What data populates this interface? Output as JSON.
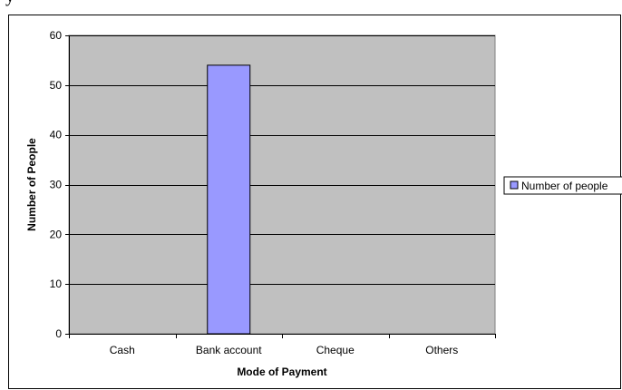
{
  "page": {
    "top_fragment": "y"
  },
  "chart_data": {
    "type": "bar",
    "title": "",
    "categories": [
      "Cash",
      "Bank account",
      "Cheque",
      "Others"
    ],
    "series": [
      {
        "name": "Number of people",
        "values": [
          0,
          54,
          0,
          0
        ],
        "color": "#9999ff"
      }
    ],
    "xlabel": "Mode of Payment",
    "ylabel": "Number of People",
    "ylim": [
      0,
      60
    ],
    "yticks": [
      0,
      10,
      20,
      30,
      40,
      50,
      60
    ],
    "grid": true,
    "plot_background": "#c0c0c0",
    "legend_position": "right"
  }
}
